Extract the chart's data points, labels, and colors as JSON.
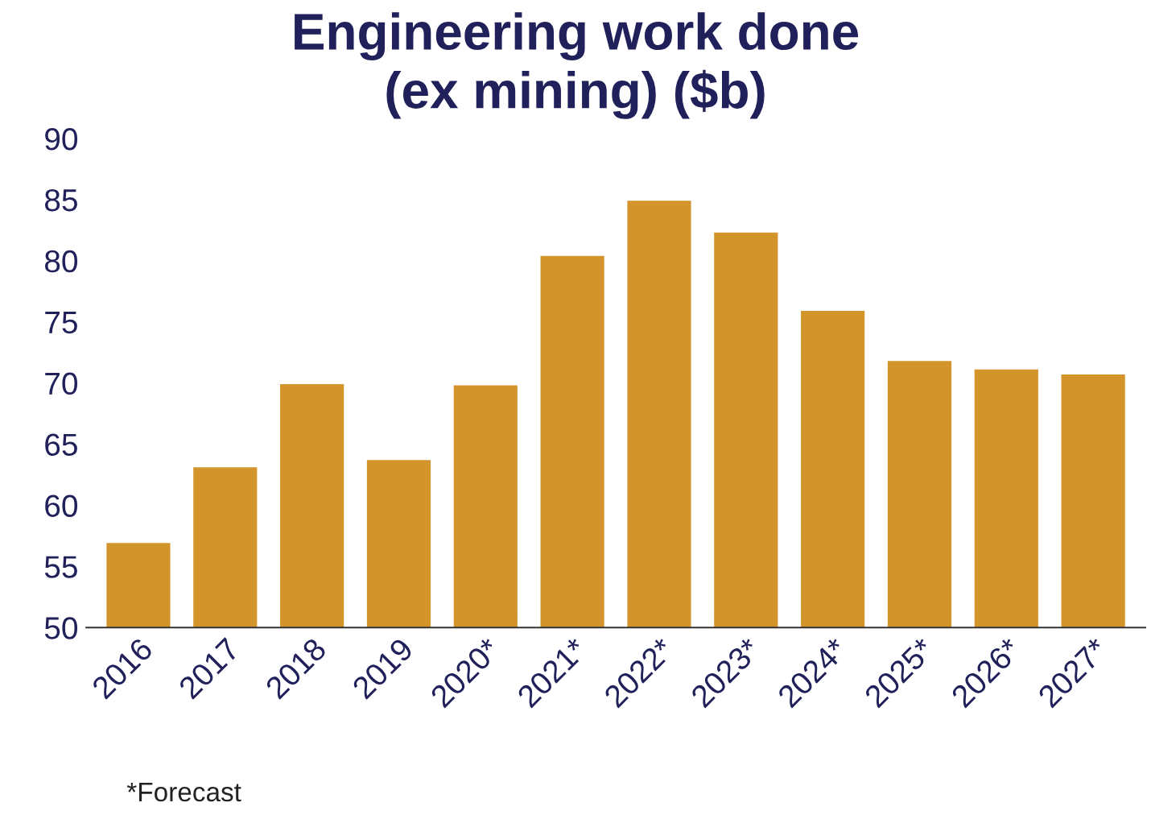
{
  "chart_data": {
    "type": "bar",
    "title": "Engineering work done\n(ex mining) ($b)",
    "categories": [
      "2016",
      "2017",
      "2018",
      "2019",
      "2020*",
      "2021*",
      "2022*",
      "2023*",
      "2024*",
      "2025*",
      "2026*",
      "2027*"
    ],
    "values": [
      57.0,
      63.2,
      70.0,
      63.8,
      69.9,
      80.5,
      85.0,
      82.4,
      76.0,
      71.9,
      71.2,
      70.8
    ],
    "color": "#d4942c",
    "ylim": [
      50,
      90
    ],
    "yticks": [
      50,
      55,
      60,
      65,
      70,
      75,
      80,
      85,
      90
    ],
    "annotations": [
      "*Forecast"
    ]
  }
}
